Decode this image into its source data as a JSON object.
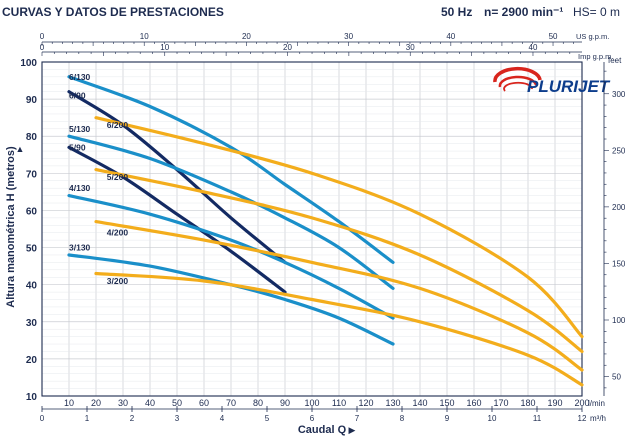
{
  "header": {
    "title": "CURVAS Y DATOS DE PRESTACIONES",
    "frequency": "50 Hz",
    "speed": "n= 2900 min⁻¹",
    "suction_height": "HS= 0 m"
  },
  "logo": {
    "text": "PLURIJET",
    "color": "#0d3d8c",
    "accent": "#d8251d"
  },
  "colors": {
    "blue": "#1a8fc9",
    "dark": "#132a63",
    "orange": "#f3ad1c",
    "grid": "#c9ccd2",
    "text": "#1d2b4f"
  },
  "chart_data": {
    "type": "line",
    "title": "",
    "xlabel": "Caudal Q",
    "ylabel": "Altura manométrica H (metros)",
    "xlim": [
      0,
      200
    ],
    "ylim": [
      10,
      100
    ],
    "x_unit": "l/min",
    "x_ticks": [
      0,
      10,
      20,
      30,
      40,
      50,
      60,
      70,
      80,
      90,
      100,
      110,
      120,
      130,
      140,
      150,
      160,
      170,
      180,
      190,
      200
    ],
    "y_ticks": [
      10,
      20,
      30,
      40,
      50,
      60,
      70,
      80,
      90,
      100
    ],
    "secondary_axes": {
      "us_gpm": {
        "label": "US g.p.m.",
        "ticks": [
          0,
          10,
          20,
          30,
          40,
          50
        ]
      },
      "imp_gpm": {
        "label": "Imp g.p.m.",
        "ticks": [
          0,
          10,
          20,
          30,
          40
        ]
      },
      "feet": {
        "label": "feet",
        "ticks": [
          50,
          100,
          150,
          200,
          250,
          300
        ]
      },
      "m3h": {
        "label": "m³/h",
        "ticks": [
          0,
          1,
          2,
          3,
          4,
          5,
          6,
          7,
          8,
          9,
          10,
          11,
          12
        ]
      }
    },
    "grid": true,
    "series": [
      {
        "name": "6/130",
        "color": "blue",
        "label_pos": [
          10,
          96
        ],
        "x": [
          10,
          40,
          70,
          90,
          110,
          130
        ],
        "y": [
          96,
          88,
          77,
          67,
          57,
          46
        ]
      },
      {
        "name": "6/90",
        "color": "dark",
        "label_pos": [
          10,
          91
        ],
        "x": [
          10,
          30,
          50,
          70,
          90
        ],
        "y": [
          92,
          83,
          71,
          58,
          46
        ]
      },
      {
        "name": "6/200",
        "color": "orange",
        "label_pos": [
          24,
          83
        ],
        "x": [
          20,
          60,
          100,
          140,
          180,
          200
        ],
        "y": [
          85,
          78,
          70,
          59,
          42,
          26
        ]
      },
      {
        "name": "5/130",
        "color": "blue",
        "label_pos": [
          10,
          82
        ],
        "x": [
          10,
          40,
          70,
          90,
          110,
          130
        ],
        "y": [
          80,
          74,
          65,
          58,
          50,
          39
        ]
      },
      {
        "name": "5/90",
        "color": "dark",
        "label_pos": [
          10,
          77
        ],
        "x": [
          10,
          30,
          50,
          70,
          90
        ],
        "y": [
          77,
          69,
          59,
          49,
          38
        ]
      },
      {
        "name": "5/200",
        "color": "orange",
        "label_pos": [
          24,
          69
        ],
        "x": [
          20,
          60,
          100,
          140,
          180,
          200
        ],
        "y": [
          71,
          65,
          58,
          48,
          33,
          22
        ]
      },
      {
        "name": "4/130",
        "color": "blue",
        "label_pos": [
          10,
          66
        ],
        "x": [
          10,
          40,
          70,
          90,
          110,
          130
        ],
        "y": [
          64,
          59,
          52,
          46,
          39,
          31
        ]
      },
      {
        "name": "4/200",
        "color": "orange",
        "label_pos": [
          24,
          54
        ],
        "x": [
          20,
          60,
          100,
          140,
          180,
          200
        ],
        "y": [
          57,
          52,
          46,
          39,
          27,
          17
        ]
      },
      {
        "name": "3/130",
        "color": "blue",
        "label_pos": [
          10,
          50
        ],
        "x": [
          10,
          40,
          70,
          90,
          110,
          130
        ],
        "y": [
          48,
          45,
          40,
          36,
          31,
          24
        ]
      },
      {
        "name": "3/200",
        "color": "orange",
        "label_pos": [
          24,
          41
        ],
        "x": [
          20,
          60,
          100,
          140,
          180,
          200
        ],
        "y": [
          43,
          41,
          36,
          30,
          21,
          13
        ]
      }
    ]
  }
}
